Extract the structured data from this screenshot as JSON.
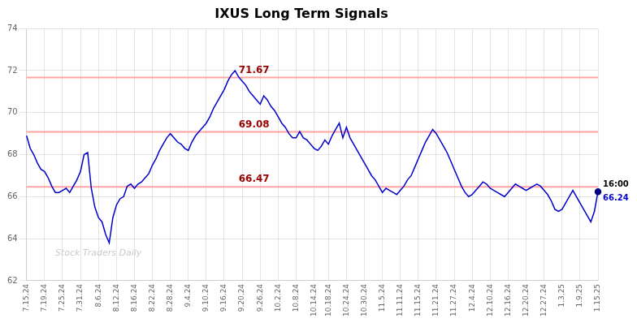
{
  "chart_data": {
    "type": "line",
    "title": "IXUS Long Term Signals",
    "categories": [
      "7.15.24",
      null,
      null,
      null,
      null,
      "7.19.24",
      null,
      null,
      null,
      null,
      "7.25.24",
      null,
      null,
      null,
      null,
      "7.31.24",
      null,
      null,
      null,
      null,
      "8.6.24",
      null,
      null,
      null,
      null,
      "8.12.24",
      null,
      null,
      null,
      null,
      "8.16.24",
      null,
      null,
      null,
      null,
      "8.22.24",
      null,
      null,
      null,
      null,
      "8.28.24",
      null,
      null,
      null,
      null,
      "9.4.24",
      null,
      null,
      null,
      null,
      "9.10.24",
      null,
      null,
      null,
      null,
      "9.16.24",
      null,
      null,
      null,
      null,
      "9.20.24",
      null,
      null,
      null,
      null,
      "9.26.24",
      null,
      null,
      null,
      null,
      "10.2.24",
      null,
      null,
      null,
      null,
      "10.8.24",
      null,
      null,
      null,
      null,
      "10.14.24",
      null,
      null,
      null,
      "10.18.24",
      null,
      null,
      null,
      null,
      "10.24.24",
      null,
      null,
      null,
      null,
      "10.30.24",
      null,
      null,
      null,
      null,
      "11.5.24",
      null,
      null,
      null,
      null,
      "11.11.24",
      null,
      null,
      null,
      null,
      "11.15.24",
      null,
      null,
      null,
      null,
      "11.21.24",
      null,
      null,
      null,
      null,
      "11.27.24",
      null,
      null,
      null,
      null,
      "12.4.24",
      null,
      null,
      null,
      null,
      "12.10.24",
      null,
      null,
      null,
      null,
      "12.16.24",
      null,
      null,
      null,
      null,
      "12.20.24",
      null,
      null,
      null,
      null,
      "12.27.24",
      null,
      null,
      null,
      null,
      "1.3.25",
      null,
      null,
      null,
      null,
      "1.9.25",
      null,
      null,
      null,
      null,
      "1.15.25"
    ],
    "values": [
      68.9,
      68.3,
      68.0,
      67.6,
      67.3,
      67.2,
      66.9,
      66.5,
      66.2,
      66.2,
      66.3,
      66.4,
      66.2,
      66.5,
      66.8,
      67.2,
      68.0,
      68.1,
      66.4,
      65.5,
      65.0,
      64.8,
      64.2,
      63.8,
      65.0,
      65.6,
      65.9,
      66.0,
      66.5,
      66.6,
      66.4,
      66.6,
      66.7,
      66.9,
      67.1,
      67.5,
      67.8,
      68.2,
      68.5,
      68.8,
      69.0,
      68.8,
      68.6,
      68.5,
      68.3,
      68.2,
      68.6,
      68.9,
      69.1,
      69.3,
      69.5,
      69.8,
      70.2,
      70.5,
      70.8,
      71.1,
      71.5,
      71.8,
      72.0,
      71.7,
      71.5,
      71.3,
      71.0,
      70.8,
      70.6,
      70.4,
      70.8,
      70.6,
      70.3,
      70.1,
      69.8,
      69.5,
      69.3,
      69.0,
      68.8,
      68.8,
      69.1,
      68.8,
      68.7,
      68.5,
      68.3,
      68.2,
      68.4,
      68.7,
      68.5,
      68.9,
      69.2,
      69.5,
      68.8,
      69.3,
      68.8,
      68.5,
      68.2,
      67.9,
      67.6,
      67.3,
      67.0,
      66.8,
      66.5,
      66.2,
      66.4,
      66.3,
      66.2,
      66.1,
      66.3,
      66.5,
      66.8,
      67.0,
      67.4,
      67.8,
      68.2,
      68.6,
      68.9,
      69.2,
      69.0,
      68.7,
      68.4,
      68.1,
      67.7,
      67.3,
      66.9,
      66.5,
      66.2,
      66.0,
      66.1,
      66.3,
      66.5,
      66.7,
      66.6,
      66.4,
      66.3,
      66.2,
      66.1,
      66.0,
      66.2,
      66.4,
      66.6,
      66.5,
      66.4,
      66.3,
      66.4,
      66.5,
      66.6,
      66.5,
      66.3,
      66.1,
      65.8,
      65.4,
      65.3,
      65.4,
      65.7,
      66.0,
      66.3,
      66.0,
      65.7,
      65.4,
      65.1,
      64.8,
      65.3,
      66.24
    ],
    "color": "#0000cc",
    "ylim": [
      62,
      74
    ],
    "yticks": [
      62,
      64,
      66,
      68,
      70,
      72,
      74
    ],
    "grid": true,
    "hlines": [
      {
        "value": 71.67,
        "label": "71.67"
      },
      {
        "value": 69.08,
        "label": "69.08"
      },
      {
        "value": 66.47,
        "label": "66.47"
      }
    ],
    "end_labels": [
      "16:00",
      "66.24"
    ],
    "watermark": "Stock Traders Daily"
  }
}
